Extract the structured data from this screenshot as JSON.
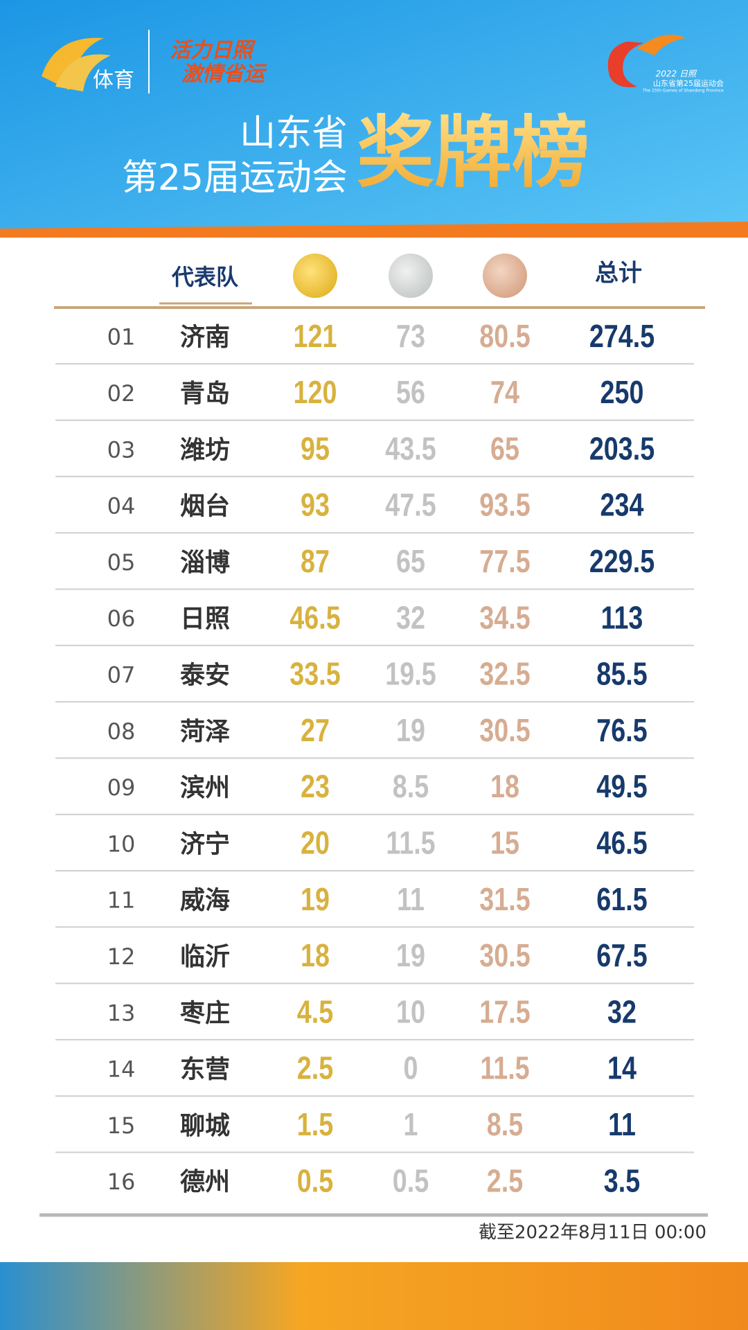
{
  "header": {
    "logo_text": "体育",
    "slogan": [
      "活力日照",
      "激情省运"
    ],
    "title_line1": "山东省",
    "title_line2": "第25届运动会",
    "title_main": "奖牌榜",
    "games_logo": {
      "year": "2022 日照",
      "name": "山东省第25届运动会",
      "english": "The 25th Games of Shandong Province"
    }
  },
  "table": {
    "team_label": "代表队",
    "total_label": "总计",
    "rows": [
      [
        "01",
        "济南",
        121,
        73,
        80.5,
        274.5
      ],
      [
        "02",
        "青岛",
        120,
        56,
        74,
        250
      ],
      [
        "03",
        "潍坊",
        95,
        43.5,
        65,
        203.5
      ],
      [
        "04",
        "烟台",
        93,
        47.5,
        93.5,
        234
      ],
      [
        "05",
        "淄博",
        87,
        65,
        77.5,
        229.5
      ],
      [
        "06",
        "日照",
        46.5,
        32,
        34.5,
        113
      ],
      [
        "07",
        "泰安",
        33.5,
        19.5,
        32.5,
        85.5
      ],
      [
        "08",
        "菏泽",
        27,
        19,
        30.5,
        76.5
      ],
      [
        "09",
        "滨州",
        23,
        8.5,
        18,
        49.5
      ],
      [
        "10",
        "济宁",
        20,
        11.5,
        15,
        46.5
      ],
      [
        "11",
        "威海",
        19,
        11,
        31.5,
        61.5
      ],
      [
        "12",
        "临沂",
        18,
        19,
        30.5,
        67.5
      ],
      [
        "13",
        "枣庄",
        4.5,
        10,
        17.5,
        32
      ],
      [
        "14",
        "东营",
        2.5,
        0,
        11.5,
        14
      ],
      [
        "15",
        "聊城",
        1.5,
        1,
        8.5,
        11
      ],
      [
        "16",
        "德州",
        0.5,
        0.5,
        2.5,
        3.5
      ]
    ]
  },
  "footer": {
    "updated": "截至2022年8月11日 00:00"
  }
}
